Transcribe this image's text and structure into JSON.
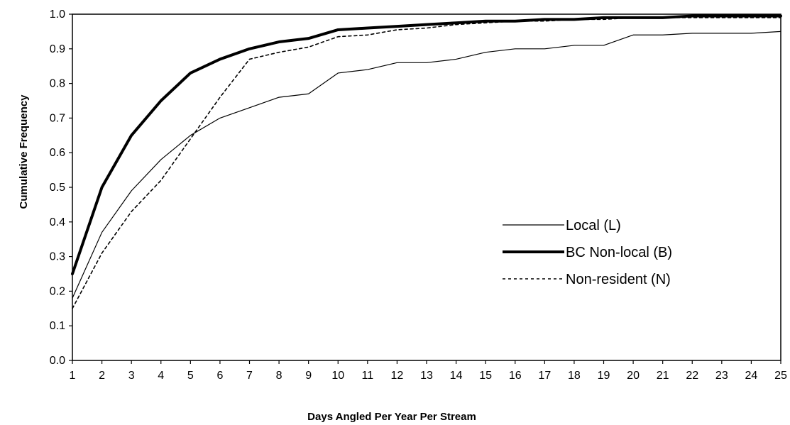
{
  "chart_data": {
    "type": "line",
    "title": "",
    "xlabel": "Days Angled Per Year Per Stream",
    "ylabel": "Cumulative Frequency",
    "x": [
      1,
      2,
      3,
      4,
      5,
      6,
      7,
      8,
      9,
      10,
      11,
      12,
      13,
      14,
      15,
      16,
      17,
      18,
      19,
      20,
      21,
      22,
      23,
      24,
      25
    ],
    "xlim": [
      1,
      25
    ],
    "ylim": [
      0,
      1
    ],
    "y_ticks": [
      "0.0",
      "0.1",
      "0.2",
      "0.3",
      "0.4",
      "0.5",
      "0.6",
      "0.7",
      "0.8",
      "0.9",
      "1.0"
    ],
    "x_ticks": [
      "1",
      "2",
      "3",
      "4",
      "5",
      "6",
      "7",
      "8",
      "9",
      "10",
      "11",
      "12",
      "13",
      "14",
      "15",
      "16",
      "17",
      "18",
      "19",
      "20",
      "21",
      "22",
      "23",
      "24",
      "25"
    ],
    "grid": false,
    "legend_position": "right",
    "series": [
      {
        "name": "Local (L)",
        "style": "thin-solid",
        "color": "#000000",
        "values": [
          0.18,
          0.37,
          0.49,
          0.58,
          0.65,
          0.7,
          0.73,
          0.76,
          0.77,
          0.83,
          0.84,
          0.86,
          0.86,
          0.87,
          0.89,
          0.9,
          0.9,
          0.91,
          0.91,
          0.94,
          0.94,
          0.945,
          0.945,
          0.945,
          0.95
        ]
      },
      {
        "name": "BC Non-local (B)",
        "style": "thick-solid",
        "color": "#000000",
        "values": [
          0.25,
          0.5,
          0.65,
          0.75,
          0.83,
          0.87,
          0.9,
          0.92,
          0.93,
          0.955,
          0.96,
          0.965,
          0.97,
          0.975,
          0.98,
          0.98,
          0.985,
          0.985,
          0.99,
          0.99,
          0.99,
          0.995,
          0.995,
          0.995,
          0.995
        ]
      },
      {
        "name": "Non-resident (N)",
        "style": "dashed",
        "color": "#000000",
        "values": [
          0.15,
          0.31,
          0.43,
          0.52,
          0.64,
          0.76,
          0.87,
          0.89,
          0.905,
          0.935,
          0.94,
          0.955,
          0.96,
          0.97,
          0.975,
          0.98,
          0.98,
          0.985,
          0.985,
          0.99,
          0.99,
          0.99,
          0.99,
          0.99,
          0.99
        ]
      }
    ]
  }
}
